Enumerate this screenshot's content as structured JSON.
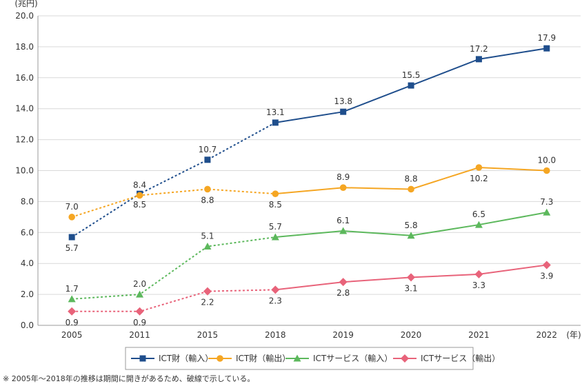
{
  "chart_data": {
    "type": "line",
    "y_unit": "(兆円)",
    "x_unit": "(年)",
    "ylim": [
      0,
      20
    ],
    "yticks": [
      "0.0",
      "2.0",
      "4.0",
      "6.0",
      "8.0",
      "10.0",
      "12.0",
      "14.0",
      "16.0",
      "18.0",
      "20.0"
    ],
    "categories": [
      "2005",
      "2011",
      "2015",
      "2018",
      "2019",
      "2020",
      "2021",
      "2022"
    ],
    "grid": "horizontal",
    "legend_position": "bottom",
    "dashed_until": "2018",
    "series": [
      {
        "name": "ICT財（輸入）",
        "color": "#1f4e8c",
        "marker": "square",
        "values": [
          5.7,
          8.5,
          10.7,
          13.1,
          13.8,
          15.5,
          17.2,
          17.9
        ],
        "labels": [
          "5.7",
          "8.5",
          "10.7",
          "13.1",
          "13.8",
          "15.5",
          "17.2",
          "17.9"
        ],
        "label_pos": [
          "below",
          "below",
          "above",
          "above",
          "above",
          "above",
          "above",
          "above"
        ]
      },
      {
        "name": "ICT財（輸出）",
        "color": "#f5a623",
        "marker": "circle",
        "values": [
          7.0,
          8.4,
          8.8,
          8.5,
          8.9,
          8.8,
          10.2,
          10.0
        ],
        "labels": [
          "7.0",
          "8.4",
          "8.8",
          "8.5",
          "8.9",
          "8.8",
          "10.2",
          "10.0"
        ],
        "label_pos": [
          "above",
          "above",
          "below",
          "below",
          "above",
          "above",
          "below",
          "above"
        ]
      },
      {
        "name": "ICTサービス（輸入）",
        "color": "#5cb85c",
        "marker": "triangle",
        "values": [
          1.7,
          2.0,
          5.1,
          5.7,
          6.1,
          5.8,
          6.5,
          7.3
        ],
        "labels": [
          "1.7",
          "2.0",
          "5.1",
          "5.7",
          "6.1",
          "5.8",
          "6.5",
          "7.3"
        ],
        "label_pos": [
          "above",
          "above",
          "above",
          "above",
          "above",
          "above",
          "above",
          "above"
        ]
      },
      {
        "name": "ICTサービス（輸出）",
        "color": "#e8637a",
        "marker": "diamond",
        "values": [
          0.9,
          0.9,
          2.2,
          2.3,
          2.8,
          3.1,
          3.3,
          3.9
        ],
        "labels": [
          "0.9",
          "0.9",
          "2.2",
          "2.3",
          "2.8",
          "3.1",
          "3.3",
          "3.9"
        ],
        "label_pos": [
          "below",
          "below",
          "below",
          "below",
          "below",
          "below",
          "below",
          "below"
        ]
      }
    ],
    "note": "※ 2005年～2018年の推移は期間に開きがあるため、破線で示している。"
  }
}
